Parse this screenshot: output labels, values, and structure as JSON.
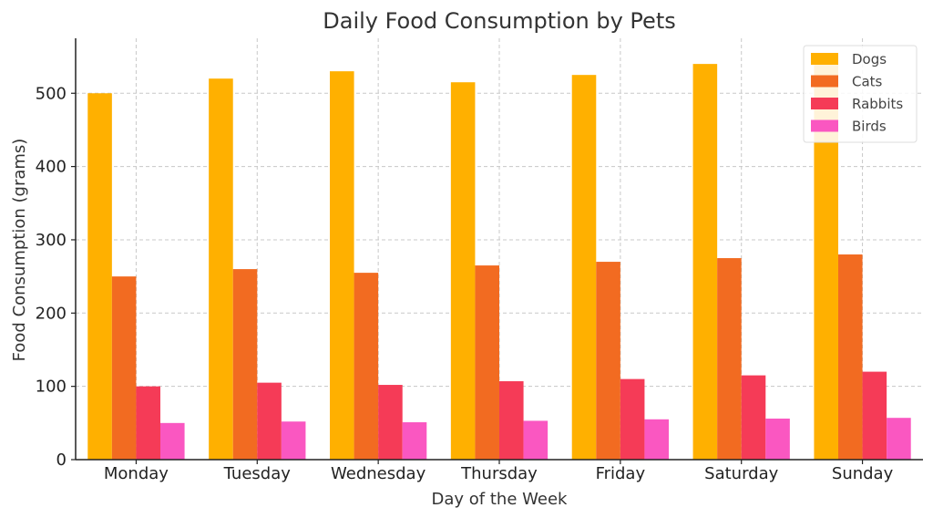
{
  "chart_data": {
    "type": "bar",
    "title": "Daily Food Consumption by Pets",
    "xlabel": "Day of the Week",
    "ylabel": "Food Consumption (grams)",
    "categories": [
      "Monday",
      "Tuesday",
      "Wednesday",
      "Thursday",
      "Friday",
      "Saturday",
      "Sunday"
    ],
    "ylim": [
      0,
      575
    ],
    "yticks": [
      0,
      100,
      200,
      300,
      400,
      500
    ],
    "grid": true,
    "legend_position": "top-right",
    "series": [
      {
        "name": "Dogs",
        "color": "#ffb000",
        "values": [
          500,
          520,
          530,
          515,
          525,
          540,
          550
        ]
      },
      {
        "name": "Cats",
        "color": "#f26b21",
        "values": [
          250,
          260,
          255,
          265,
          270,
          275,
          280
        ]
      },
      {
        "name": "Rabbits",
        "color": "#f53b57",
        "values": [
          100,
          105,
          102,
          107,
          110,
          115,
          120
        ]
      },
      {
        "name": "Birds",
        "color": "#fa57c1",
        "values": [
          50,
          52,
          51,
          53,
          55,
          56,
          57
        ]
      }
    ]
  }
}
